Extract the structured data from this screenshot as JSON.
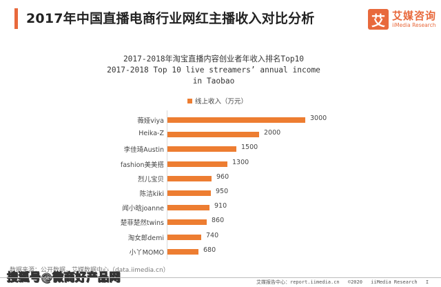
{
  "header": {
    "title": "2017年中国直播电商行业网红主播收入对比分析",
    "accent_color": "#e8693c"
  },
  "logo": {
    "mark": "艾",
    "name_cn": "艾媒咨询",
    "name_en": "iiMedia Research"
  },
  "chart_data": {
    "type": "bar",
    "orientation": "horizontal",
    "title_cn": "2017-2018年淘宝直播内容创业者年收入排名Top10",
    "title_en_line1": "2017-2018 Top 10 live streamers’ annual income",
    "title_en_line2": "in Taobao",
    "legend": [
      "线上收入（万元）"
    ],
    "series": [
      {
        "name": "线上收入（万元）",
        "color": "#ed7d31",
        "values": [
          3000,
          2000,
          1500,
          1300,
          960,
          950,
          910,
          860,
          740,
          680
        ]
      }
    ],
    "categories": [
      "薇娅viya",
      "Heika-Z",
      "李佳琦Austin",
      "fashion美美搭",
      "烈儿宝贝",
      "陈洁kiki",
      "闻小晗joanne",
      "楚菲楚然twins",
      "淘女郎demi",
      "小丫MOMO"
    ],
    "values": [
      3000,
      2000,
      1500,
      1300,
      960,
      950,
      910,
      860,
      740,
      680
    ],
    "xlabel": "",
    "ylabel": "",
    "xlim": [
      0,
      3000
    ],
    "grid": false,
    "legend_position": "top"
  },
  "chart": {
    "rows": [
      {
        "label": "薇娅viya",
        "value": "3000"
      },
      {
        "label": "Heika-Z",
        "value": "2000"
      },
      {
        "label": "李佳琦Austin",
        "value": "1500"
      },
      {
        "label": "fashion美美搭",
        "value": "1300"
      },
      {
        "label": "烈儿宝贝",
        "value": "960"
      },
      {
        "label": "陈洁kiki",
        "value": "950"
      },
      {
        "label": "闻小晗joanne",
        "value": "910"
      },
      {
        "label": "楚菲楚然twins",
        "value": "860"
      },
      {
        "label": "淘女郎demi",
        "value": "740"
      },
      {
        "label": "小丫MOMO",
        "value": "680"
      }
    ]
  },
  "source": "数据来源：公开数据，艾媒数据中心（data.iimedia.cn）",
  "watermark": "搜狐号@微商好产品网",
  "footer": {
    "report_center": "艾媒报告中心：report.iimedia.cn",
    "copyright": "©2020",
    "brand": "iiMedia Research",
    "page": "I"
  }
}
